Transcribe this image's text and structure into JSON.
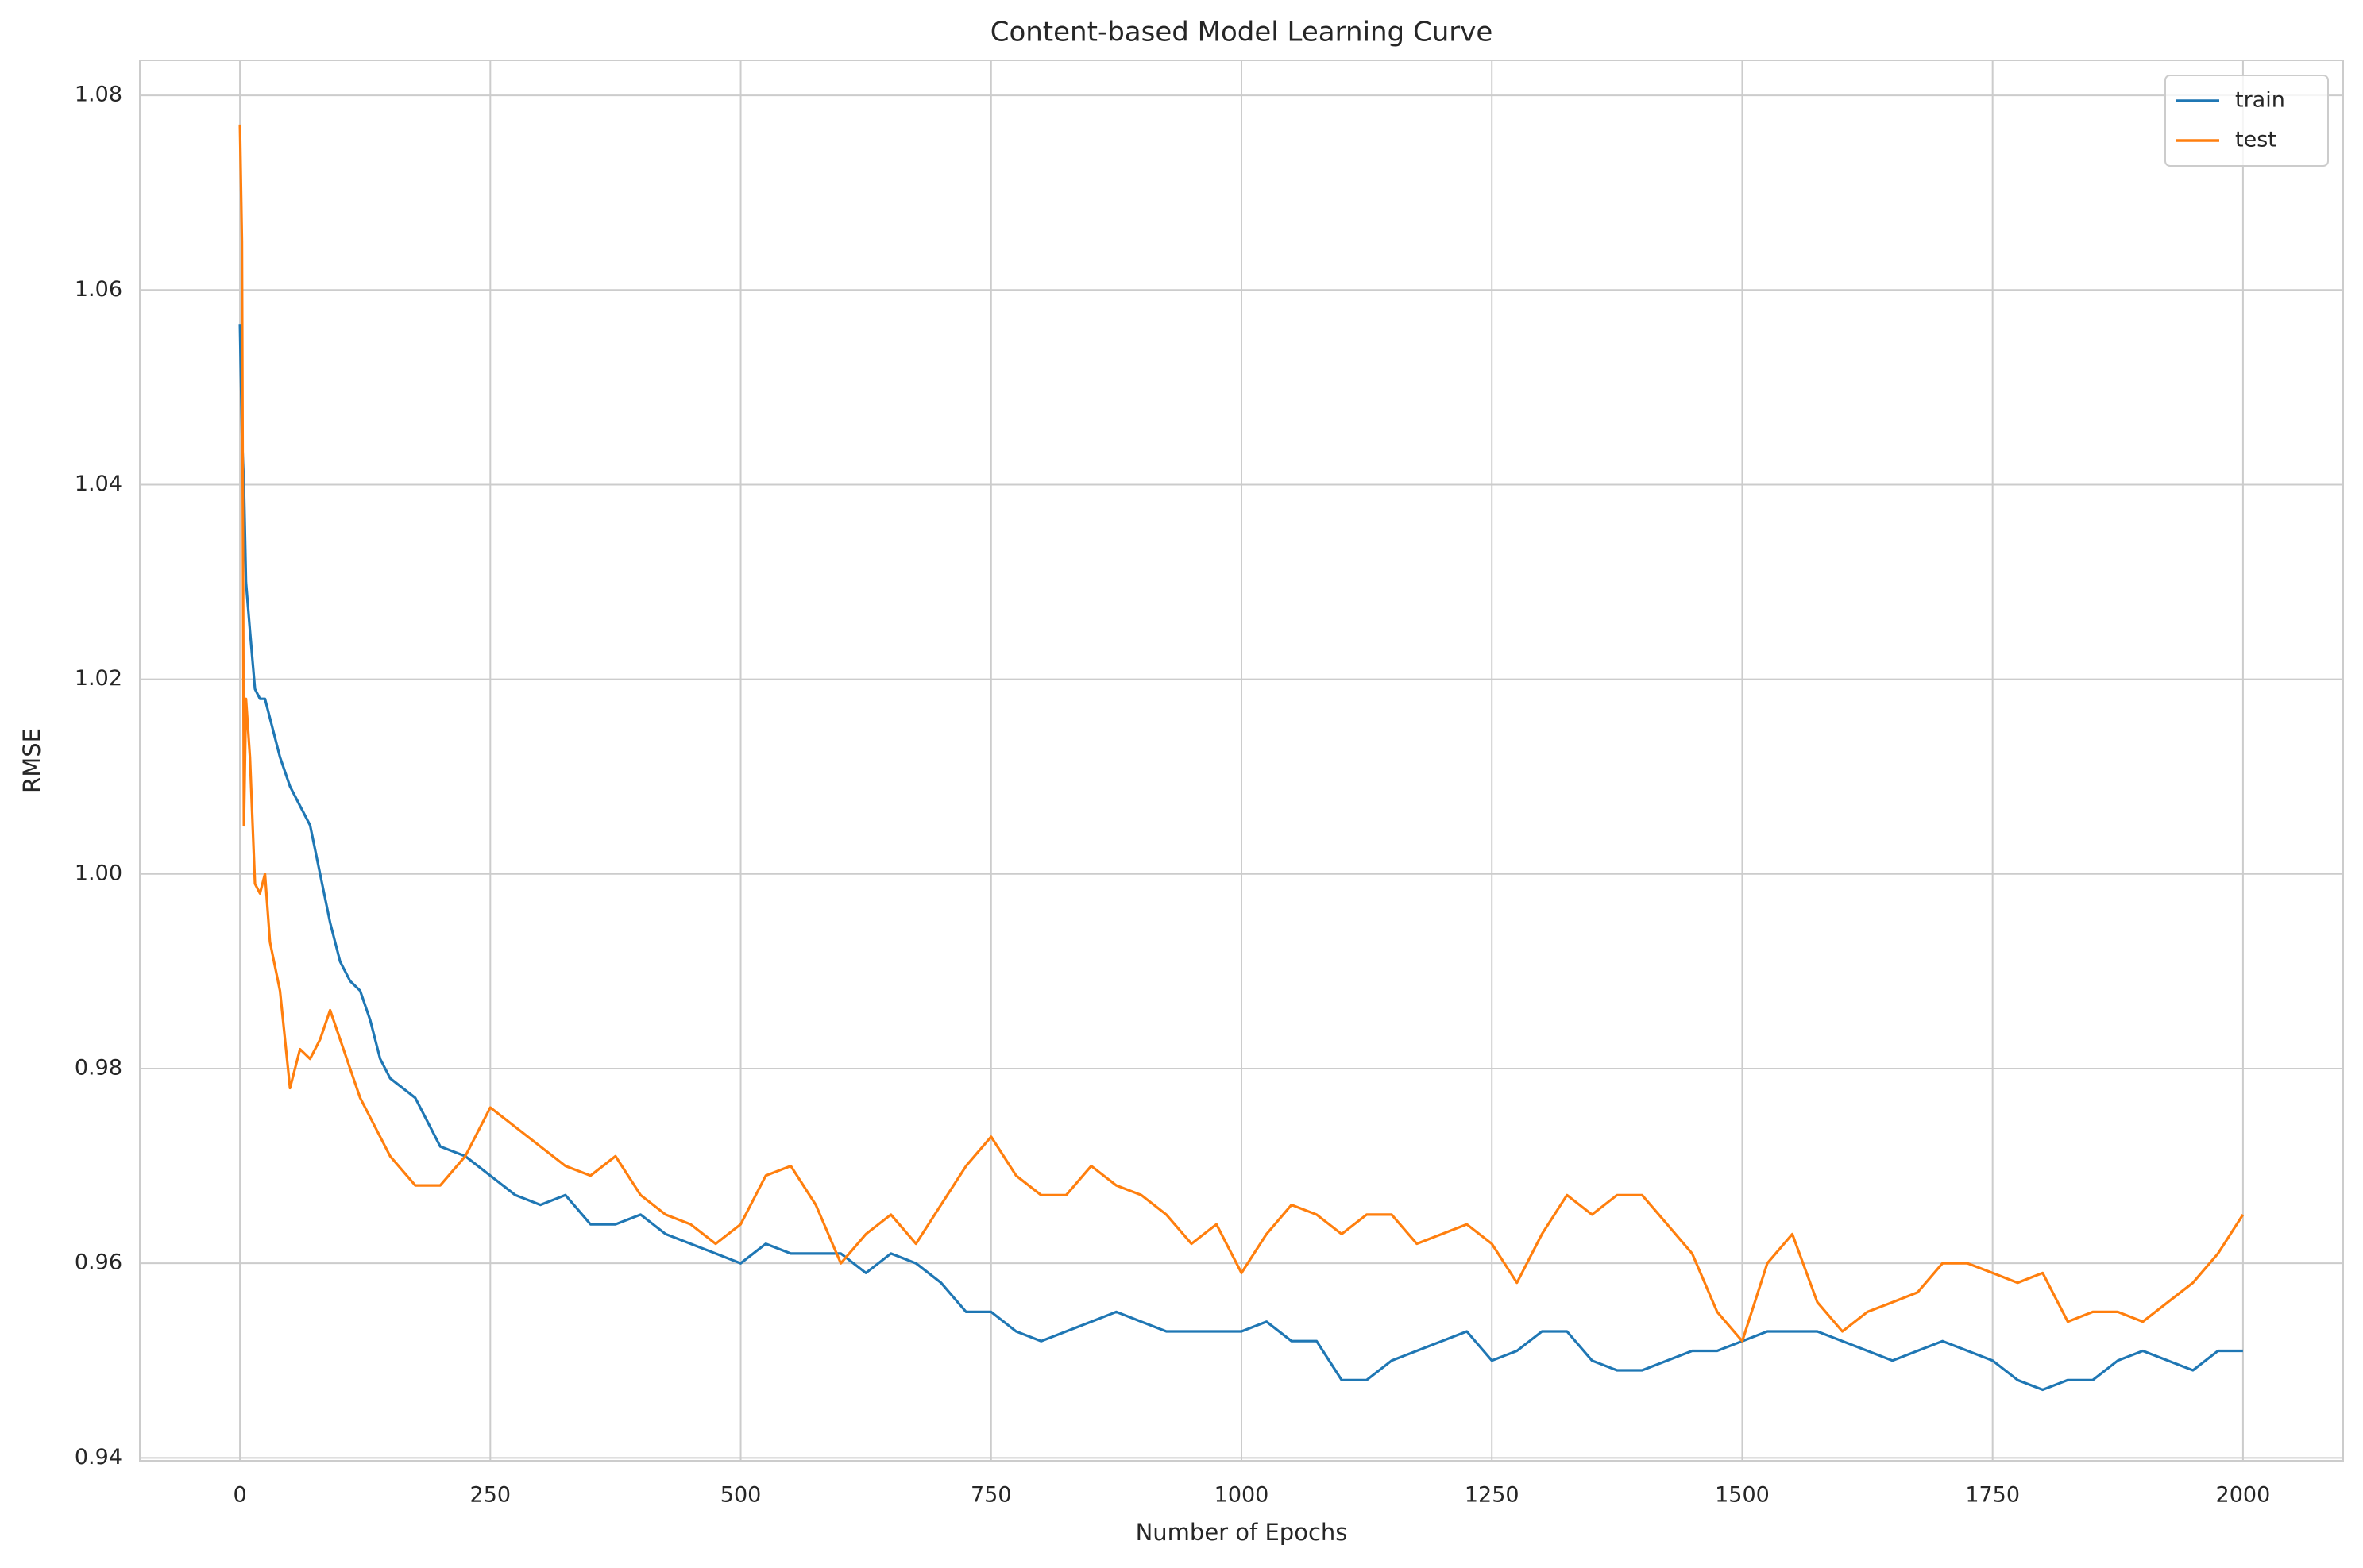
{
  "chart_data": {
    "type": "line",
    "title": "Content-based Model Learning Curve",
    "x_label": "Number of Epochs",
    "y_label": "RMSE",
    "x": [
      0,
      2,
      4,
      6,
      10,
      15,
      20,
      25,
      30,
      40,
      50,
      60,
      70,
      80,
      90,
      100,
      110,
      120,
      130,
      140,
      150,
      175,
      200,
      225,
      250,
      275,
      300,
      325,
      350,
      375,
      400,
      425,
      450,
      475,
      500,
      525,
      550,
      575,
      600,
      625,
      650,
      675,
      700,
      725,
      750,
      775,
      800,
      825,
      850,
      875,
      900,
      925,
      950,
      975,
      1000,
      1025,
      1050,
      1075,
      1100,
      1125,
      1150,
      1175,
      1200,
      1225,
      1250,
      1275,
      1300,
      1325,
      1350,
      1375,
      1400,
      1425,
      1450,
      1475,
      1500,
      1525,
      1550,
      1575,
      1600,
      1625,
      1650,
      1675,
      1700,
      1725,
      1750,
      1775,
      1800,
      1825,
      1850,
      1875,
      1900,
      1925,
      1950,
      1975,
      2000
    ],
    "series": [
      {
        "name": "train",
        "color": "#1f77b4",
        "values": [
          1.0565,
          1.045,
          1.04,
          1.03,
          1.025,
          1.019,
          1.018,
          1.018,
          1.016,
          1.012,
          1.009,
          1.007,
          1.005,
          1.0,
          0.995,
          0.991,
          0.989,
          0.988,
          0.985,
          0.981,
          0.979,
          0.977,
          0.972,
          0.971,
          0.969,
          0.967,
          0.966,
          0.967,
          0.964,
          0.964,
          0.965,
          0.963,
          0.962,
          0.961,
          0.96,
          0.962,
          0.961,
          0.961,
          0.961,
          0.959,
          0.961,
          0.96,
          0.958,
          0.955,
          0.955,
          0.953,
          0.952,
          0.953,
          0.954,
          0.955,
          0.954,
          0.953,
          0.953,
          0.953,
          0.953,
          0.954,
          0.952,
          0.952,
          0.948,
          0.948,
          0.95,
          0.951,
          0.952,
          0.953,
          0.95,
          0.951,
          0.953,
          0.953,
          0.95,
          0.949,
          0.949,
          0.95,
          0.951,
          0.951,
          0.952,
          0.953,
          0.953,
          0.953,
          0.952,
          0.951,
          0.95,
          0.951,
          0.952,
          0.951,
          0.95,
          0.948,
          0.947,
          0.948,
          0.948,
          0.95,
          0.951,
          0.95,
          0.949,
          0.951,
          0.951
        ]
      },
      {
        "name": "test",
        "color": "#ff7f0e",
        "values": [
          1.077,
          1.065,
          1.005,
          1.018,
          1.012,
          0.999,
          0.998,
          1.0,
          0.993,
          0.988,
          0.978,
          0.982,
          0.981,
          0.983,
          0.986,
          0.983,
          0.98,
          0.977,
          0.975,
          0.973,
          0.971,
          0.968,
          0.968,
          0.971,
          0.976,
          0.974,
          0.972,
          0.97,
          0.969,
          0.971,
          0.967,
          0.965,
          0.964,
          0.962,
          0.964,
          0.969,
          0.97,
          0.966,
          0.96,
          0.963,
          0.965,
          0.962,
          0.966,
          0.97,
          0.973,
          0.969,
          0.967,
          0.967,
          0.97,
          0.968,
          0.967,
          0.965,
          0.962,
          0.964,
          0.959,
          0.963,
          0.966,
          0.965,
          0.963,
          0.965,
          0.965,
          0.962,
          0.963,
          0.964,
          0.962,
          0.958,
          0.963,
          0.967,
          0.965,
          0.967,
          0.967,
          0.964,
          0.961,
          0.955,
          0.952,
          0.96,
          0.963,
          0.956,
          0.953,
          0.955,
          0.956,
          0.957,
          0.96,
          0.96,
          0.959,
          0.958,
          0.959,
          0.954,
          0.955,
          0.955,
          0.954,
          0.956,
          0.958,
          0.961,
          0.965
        ]
      }
    ],
    "xlim": [
      -100,
      2100
    ],
    "xticks": [
      0,
      250,
      500,
      750,
      1000,
      1250,
      1500,
      1750,
      2000
    ],
    "ylim": [
      0.9397,
      1.0836
    ],
    "yticks": [
      0.94,
      0.96,
      0.98,
      {
        "value": 1,
        "label": "1.00"
      },
      1.02,
      1.04,
      1.06,
      1.08
    ],
    "grid": true,
    "legend": "upper right"
  }
}
